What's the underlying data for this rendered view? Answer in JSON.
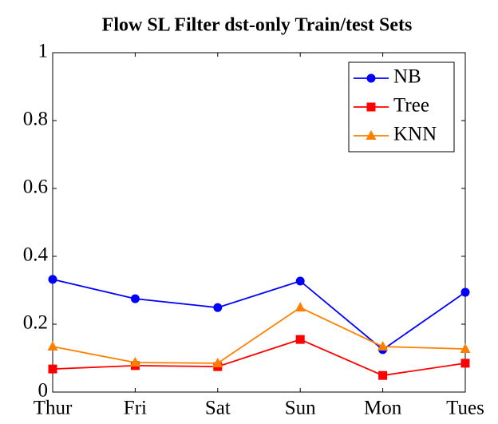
{
  "chart_data": {
    "type": "line",
    "title": "Flow SL Filter dst-only Train/test Sets",
    "categories": [
      "Thur",
      "Fri",
      "Sat",
      "Sun",
      "Mon",
      "Tues"
    ],
    "series": [
      {
        "name": "NB",
        "color": "#0000ff",
        "marker": "circle",
        "values": [
          0.332,
          0.275,
          0.249,
          0.327,
          0.125,
          0.294
        ]
      },
      {
        "name": "Tree",
        "color": "#ff0000",
        "marker": "square",
        "values": [
          0.068,
          0.078,
          0.075,
          0.155,
          0.049,
          0.085
        ]
      },
      {
        "name": "KNN",
        "color": "#ff8000",
        "marker": "triangle",
        "values": [
          0.134,
          0.087,
          0.085,
          0.249,
          0.134,
          0.127
        ]
      }
    ],
    "ylim": [
      0,
      1
    ],
    "yticks": [
      0,
      0.2,
      0.4,
      0.6,
      0.8,
      1
    ],
    "grid": false,
    "legend": "top-right"
  }
}
